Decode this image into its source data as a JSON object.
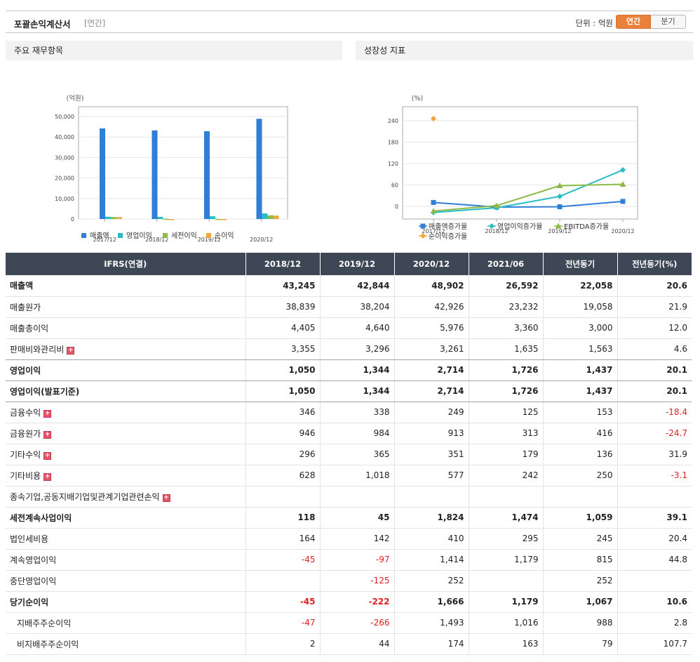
{
  "header": {
    "title": "포괄손익계산서",
    "period_tag": "[연간]",
    "unit_label": "단위 : 억원",
    "toggle_annual": "연간",
    "toggle_quarter": "분기"
  },
  "panels": {
    "left_title": "주요 재무항목",
    "right_title": "성장성 지표"
  },
  "chart_data": [
    {
      "type": "bar",
      "ylabel": "(억원)",
      "ylim": [
        0,
        50000
      ],
      "yticks": [
        "0",
        "10,000",
        "20,000",
        "30,000",
        "40,000",
        "50,000"
      ],
      "categories": [
        "2017/12",
        "2018/12",
        "2019/12",
        "2020/12"
      ],
      "series": [
        {
          "name": "매출액",
          "color": "#2f7fd8",
          "values": [
            44200,
            43245,
            42844,
            48902
          ]
        },
        {
          "name": "영업이익",
          "color": "#29bcc4",
          "values": [
            1100,
            1050,
            1344,
            2714
          ]
        },
        {
          "name": "세전이익",
          "color": "#8dbb4a",
          "values": [
            1000,
            118,
            45,
            1824
          ]
        },
        {
          "name": "순이익",
          "color": "#f2a53a",
          "values": [
            900,
            -45,
            -222,
            1666
          ]
        }
      ],
      "legend": "bottom"
    },
    {
      "type": "line",
      "ylabel": "(%)",
      "ylim": [
        -20,
        260
      ],
      "yticks": [
        "0",
        "60",
        "120",
        "180",
        "240"
      ],
      "categories": [
        "2017/12",
        "2018/12",
        "2019/12",
        "2020/12"
      ],
      "series": [
        {
          "name": "매출액증가율",
          "color": "#2f7fd8",
          "marker": "square",
          "values": [
            11,
            -2,
            -1,
            14
          ]
        },
        {
          "name": "영업이익증가율",
          "color": "#29bcc4",
          "marker": "diamond",
          "values": [
            -17,
            -4,
            28,
            102
          ]
        },
        {
          "name": "EBITDA증가율",
          "color": "#8dbb4a",
          "marker": "triangle",
          "values": [
            -13,
            2,
            58,
            62
          ]
        },
        {
          "name": "순이익증가율",
          "color": "#f2a53a",
          "marker": "diamond",
          "values": [
            246,
            null,
            null,
            null
          ]
        }
      ],
      "legend": "bottom"
    }
  ],
  "table": {
    "columns": [
      "IFRS(연결)",
      "2018/12",
      "2019/12",
      "2020/12",
      "2021/06",
      "전년동기",
      "전년동기(%)"
    ],
    "rows": [
      {
        "label": "매출액",
        "values": [
          "43,245",
          "42,844",
          "48,902",
          "26,592",
          "22,058",
          "20.6"
        ]
      },
      {
        "label": "매출원가",
        "values": [
          "38,839",
          "38,204",
          "42,926",
          "23,232",
          "19,058",
          "21.9"
        ]
      },
      {
        "label": "매출총이익",
        "values": [
          "4,405",
          "4,640",
          "5,976",
          "3,360",
          "3,000",
          "12.0"
        ]
      },
      {
        "label": "판매비와관리비",
        "values": [
          "3,355",
          "3,296",
          "3,261",
          "1,635",
          "1,563",
          "4.6"
        ]
      },
      {
        "label": "영업이익",
        "values": [
          "1,050",
          "1,344",
          "2,714",
          "1,726",
          "1,437",
          "20.1"
        ]
      },
      {
        "label": "영업이익(발표기준)",
        "values": [
          "1,050",
          "1,344",
          "2,714",
          "1,726",
          "1,437",
          "20.1"
        ]
      },
      {
        "label": "금융수익",
        "values": [
          "346",
          "338",
          "249",
          "125",
          "153",
          "-18.4"
        ]
      },
      {
        "label": "금융원가",
        "values": [
          "946",
          "984",
          "913",
          "313",
          "416",
          "-24.7"
        ]
      },
      {
        "label": "기타수익",
        "values": [
          "296",
          "365",
          "351",
          "179",
          "136",
          "31.9"
        ]
      },
      {
        "label": "기타비용",
        "values": [
          "628",
          "1,018",
          "577",
          "242",
          "250",
          "-3.1"
        ]
      },
      {
        "label": "종속기업,공동지배기업및관계기업관련손익",
        "values": [
          "",
          "",
          "",
          "",
          "",
          ""
        ]
      },
      {
        "label": "세전계속사업이익",
        "values": [
          "118",
          "45",
          "1,824",
          "1,474",
          "1,059",
          "39.1"
        ]
      },
      {
        "label": "법인세비용",
        "values": [
          "164",
          "142",
          "410",
          "295",
          "245",
          "20.4"
        ]
      },
      {
        "label": "계속영업이익",
        "values": [
          "-45",
          "-97",
          "1,414",
          "1,179",
          "815",
          "44.8"
        ]
      },
      {
        "label": "중단영업이익",
        "values": [
          "",
          "-125",
          "252",
          "",
          "252",
          ""
        ]
      },
      {
        "label": "당기순이익",
        "values": [
          "-45",
          "-222",
          "1,666",
          "1,179",
          "1,067",
          "10.6"
        ]
      },
      {
        "label": "지배주주순이익",
        "values": [
          "-47",
          "-266",
          "1,493",
          "1,016",
          "988",
          "2.8"
        ]
      },
      {
        "label": "비지배주주순이익",
        "values": [
          "2",
          "44",
          "174",
          "163",
          "79",
          "107.7"
        ]
      }
    ]
  }
}
